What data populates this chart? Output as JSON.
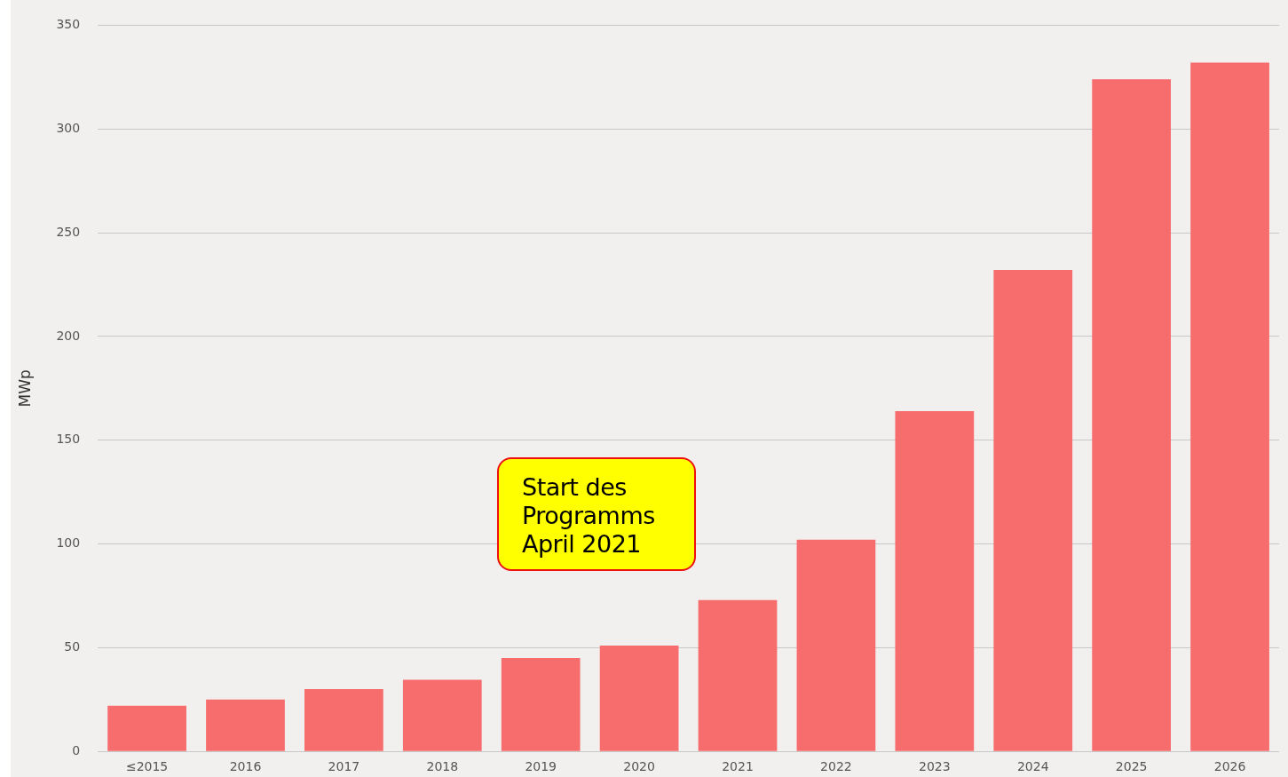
{
  "chart_data": {
    "type": "bar",
    "ylabel": "MWp",
    "categories": [
      "≤2015",
      "2016",
      "2017",
      "2018",
      "2019",
      "2020",
      "2021",
      "2022",
      "2023",
      "2024",
      "2025",
      "2026"
    ],
    "values": [
      22,
      25,
      30,
      34.5,
      45,
      51,
      73,
      102,
      164,
      232,
      324,
      332
    ],
    "color": "#f76c6c",
    "ylim": [
      0,
      350
    ],
    "yticks": [
      0,
      50,
      100,
      150,
      200,
      250,
      300,
      350
    ],
    "grid": "y",
    "annotations": [
      "Start des Programms April 2021"
    ]
  }
}
